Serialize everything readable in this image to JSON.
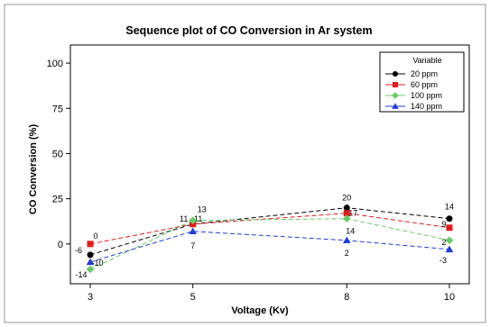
{
  "chart_data": {
    "type": "line",
    "title": "Sequence plot of CO Conversion in Ar system",
    "xlabel": "Voltage (Kv)",
    "ylabel": "CO Conversion (%)",
    "x": [
      3,
      5,
      8,
      10
    ],
    "x_tick_labels": [
      "3",
      "5",
      "8",
      "10"
    ],
    "y_ticks": [
      0,
      25,
      50,
      75,
      100
    ],
    "y_tick_labels": [
      "0",
      "25",
      "50",
      "75",
      "100"
    ],
    "ylim": [
      -22,
      110
    ],
    "grid": false,
    "legend": {
      "title": "Variable",
      "placement": "top-right"
    },
    "series": [
      {
        "name": "20 ppm",
        "values": [
          -6,
          11,
          20,
          14
        ],
        "labels": [
          "-6",
          "11",
          "20",
          "14"
        ],
        "color": "#000000",
        "marker": "circle",
        "line": "dashed"
      },
      {
        "name": "60 ppm",
        "values": [
          0,
          11,
          17,
          9
        ],
        "labels": [
          "0",
          "11",
          "17",
          "9"
        ],
        "color": "#e31a1c",
        "marker": "square",
        "line": "dashed"
      },
      {
        "name": "100 ppm",
        "values": [
          -14,
          13,
          14,
          2
        ],
        "labels": [
          "-14",
          "13",
          "14",
          "2"
        ],
        "color": "#66cc66",
        "marker": "diamond",
        "line": "dashed"
      },
      {
        "name": "140 ppm",
        "values": [
          -10,
          7,
          2,
          -3
        ],
        "labels": [
          "-10",
          "7",
          "2",
          "-3"
        ],
        "color": "#1f3fd6",
        "marker": "triangle",
        "line": "dashed"
      }
    ]
  }
}
